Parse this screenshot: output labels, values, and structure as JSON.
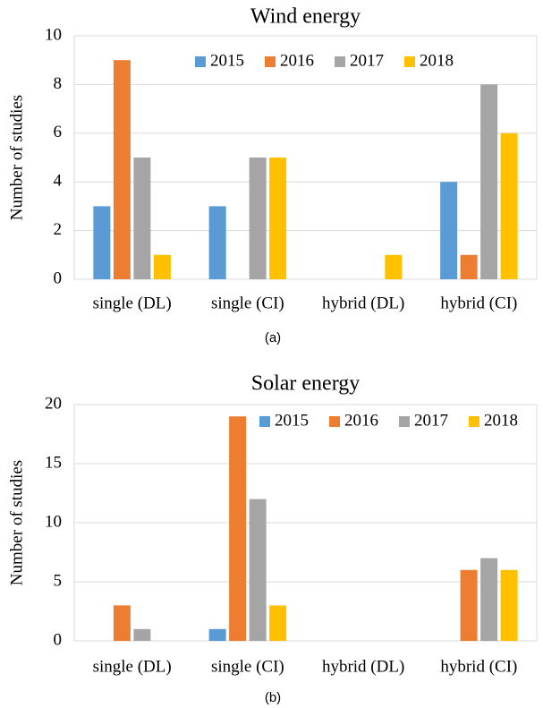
{
  "chart_data": [
    {
      "type": "bar",
      "title": "Wind energy",
      "y_label": "Number of studies",
      "caption": "(a)",
      "categories": [
        "single (DL)",
        "single (CI)",
        "hybrid (DL)",
        "hybrid (CI)"
      ],
      "series": [
        {
          "name": "2015",
          "color": "#5b9bd5",
          "values": [
            3,
            3,
            0,
            4
          ]
        },
        {
          "name": "2016",
          "color": "#ed7d31",
          "values": [
            9,
            0,
            0,
            1
          ]
        },
        {
          "name": "2017",
          "color": "#a5a5a5",
          "values": [
            5,
            5,
            0,
            8
          ]
        },
        {
          "name": "2018",
          "color": "#ffc000",
          "values": [
            1,
            5,
            1,
            6
          ]
        }
      ],
      "ylim": [
        0,
        10
      ],
      "yticks": [
        0,
        2,
        4,
        6,
        8,
        10
      ],
      "grid": true,
      "legend": "top"
    },
    {
      "type": "bar",
      "title": "Solar energy",
      "y_label": "Number of studies",
      "caption": "(b)",
      "categories": [
        "single (DL)",
        "single (CI)",
        "hybrid (DL)",
        "hybrid (CI)"
      ],
      "series": [
        {
          "name": "2015",
          "color": "#5b9bd5",
          "values": [
            0,
            1,
            0,
            0
          ]
        },
        {
          "name": "2016",
          "color": "#ed7d31",
          "values": [
            3,
            19,
            0,
            6
          ]
        },
        {
          "name": "2017",
          "color": "#a5a5a5",
          "values": [
            1,
            12,
            0,
            7
          ]
        },
        {
          "name": "2018",
          "color": "#ffc000",
          "values": [
            0,
            3,
            0,
            6
          ]
        }
      ],
      "ylim": [
        0,
        20
      ],
      "yticks": [
        0,
        5,
        10,
        15,
        20
      ],
      "grid": true,
      "legend": "top-right"
    }
  ]
}
